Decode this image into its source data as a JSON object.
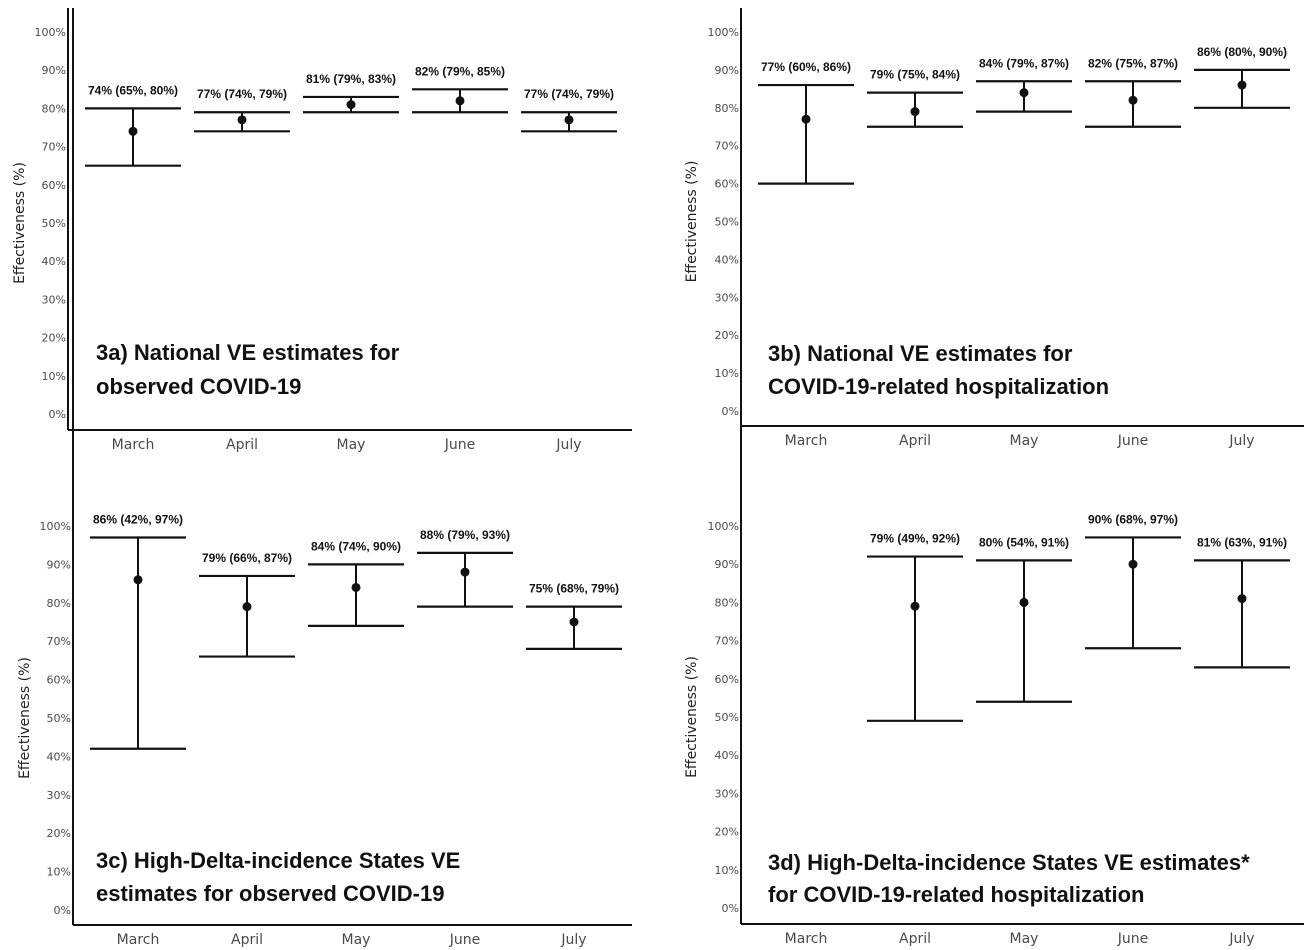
{
  "chart_data": [
    {
      "type": "errorbar",
      "title_lines": [
        "3a) National VE estimates for",
        "observed COVID-19"
      ],
      "ylabel": "Effectiveness (%)",
      "categories": [
        "March",
        "April",
        "May",
        "June",
        "July"
      ],
      "y_ticks": [
        "0%",
        "10%",
        "20%",
        "30%",
        "40%",
        "50%",
        "60%",
        "70%",
        "80%",
        "90%",
        "100%"
      ],
      "ylim": [
        0,
        100
      ],
      "series": [
        {
          "points": [
            {
              "category": "March",
              "estimate": 74,
              "lower": 65,
              "upper": 80,
              "label": "74% (65%, 80%)"
            },
            {
              "category": "April",
              "estimate": 77,
              "lower": 74,
              "upper": 79,
              "label": "77% (74%, 79%)"
            },
            {
              "category": "May",
              "estimate": 81,
              "lower": 79,
              "upper": 83,
              "label": "81% (79%, 83%)"
            },
            {
              "category": "June",
              "estimate": 82,
              "lower": 79,
              "upper": 85,
              "label": "82% (79%, 85%)"
            },
            {
              "category": "July",
              "estimate": 77,
              "lower": 74,
              "upper": 79,
              "label": "77% (74%, 79%)"
            }
          ]
        }
      ],
      "grid": false,
      "colors": {
        "marks": "#111111",
        "tick_text": "#4a4a4a"
      }
    },
    {
      "type": "errorbar",
      "title_lines": [
        "3b) National VE estimates for",
        "COVID-19-related hospitalization"
      ],
      "ylabel": "Effectiveness (%)",
      "categories": [
        "March",
        "April",
        "May",
        "June",
        "July"
      ],
      "y_ticks": [
        "0%",
        "10%",
        "20%",
        "30%",
        "40%",
        "50%",
        "60%",
        "70%",
        "80%",
        "90%",
        "100%"
      ],
      "ylim": [
        0,
        100
      ],
      "series": [
        {
          "points": [
            {
              "category": "March",
              "estimate": 77,
              "lower": 60,
              "upper": 86,
              "label": "77% (60%, 86%)"
            },
            {
              "category": "April",
              "estimate": 79,
              "lower": 75,
              "upper": 84,
              "label": "79% (75%, 84%)"
            },
            {
              "category": "May",
              "estimate": 84,
              "lower": 79,
              "upper": 87,
              "label": "84% (79%, 87%)"
            },
            {
              "category": "June",
              "estimate": 82,
              "lower": 75,
              "upper": 87,
              "label": "82% (75%, 87%)"
            },
            {
              "category": "July",
              "estimate": 86,
              "lower": 80,
              "upper": 90,
              "label": "86% (80%, 90%)"
            }
          ]
        }
      ],
      "grid": false,
      "colors": {
        "marks": "#111111",
        "tick_text": "#4a4a4a"
      }
    },
    {
      "type": "errorbar",
      "title_lines": [
        "3c) High-Delta-incidence States VE",
        "estimates for observed COVID-19"
      ],
      "ylabel": "Effectiveness (%)",
      "categories": [
        "March",
        "April",
        "May",
        "June",
        "July"
      ],
      "y_ticks": [
        "0%",
        "10%",
        "20%",
        "30%",
        "40%",
        "50%",
        "60%",
        "70%",
        "80%",
        "90%",
        "100%"
      ],
      "ylim": [
        0,
        100
      ],
      "series": [
        {
          "points": [
            {
              "category": "March",
              "estimate": 86,
              "lower": 42,
              "upper": 97,
              "label": "86% (42%, 97%)"
            },
            {
              "category": "April",
              "estimate": 79,
              "lower": 66,
              "upper": 87,
              "label": "79% (66%, 87%)"
            },
            {
              "category": "May",
              "estimate": 84,
              "lower": 74,
              "upper": 90,
              "label": "84% (74%, 90%)"
            },
            {
              "category": "June",
              "estimate": 88,
              "lower": 79,
              "upper": 93,
              "label": "88% (79%, 93%)"
            },
            {
              "category": "July",
              "estimate": 75,
              "lower": 68,
              "upper": 79,
              "label": "75% (68%, 79%)"
            }
          ]
        }
      ],
      "grid": false,
      "colors": {
        "marks": "#111111",
        "tick_text": "#4a4a4a"
      }
    },
    {
      "type": "errorbar",
      "title_lines": [
        "3d) High-Delta-incidence States VE estimates*",
        "for COVID-19-related hospitalization"
      ],
      "ylabel": "Effectiveness (%)",
      "categories": [
        "March",
        "April",
        "May",
        "June",
        "July"
      ],
      "y_ticks": [
        "0%",
        "10%",
        "20%",
        "30%",
        "40%",
        "50%",
        "60%",
        "70%",
        "80%",
        "90%",
        "100%"
      ],
      "ylim": [
        0,
        100
      ],
      "series": [
        {
          "points": [
            {
              "category": "April",
              "estimate": 79,
              "lower": 49,
              "upper": 92,
              "label": "79% (49%, 92%)"
            },
            {
              "category": "May",
              "estimate": 80,
              "lower": 54,
              "upper": 91,
              "label": "80% (54%, 91%)"
            },
            {
              "category": "June",
              "estimate": 90,
              "lower": 68,
              "upper": 97,
              "label": "90% (68%, 97%)"
            },
            {
              "category": "July",
              "estimate": 81,
              "lower": 63,
              "upper": 91,
              "label": "81% (63%, 91%)"
            }
          ]
        }
      ],
      "grid": false,
      "colors": {
        "marks": "#111111",
        "tick_text": "#4a4a4a"
      }
    }
  ]
}
